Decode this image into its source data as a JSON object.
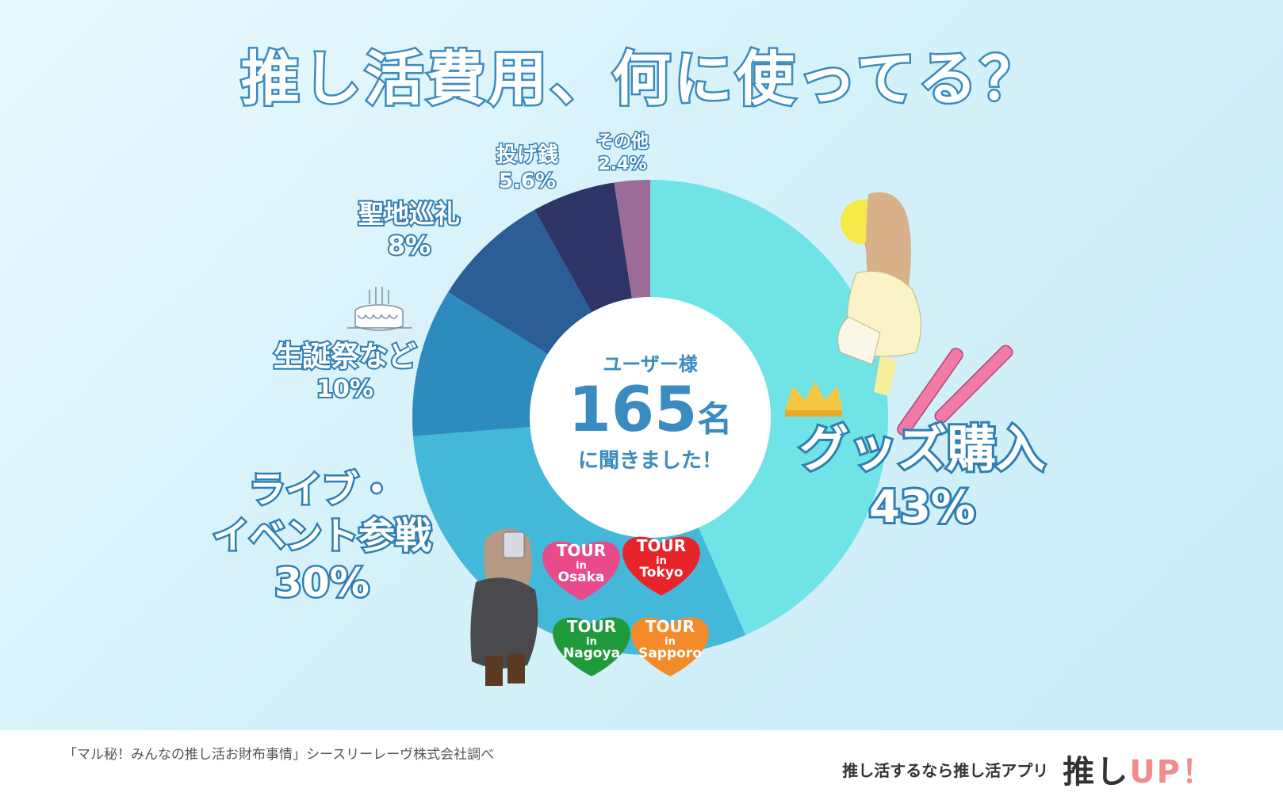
{
  "title": "推し活費用、何に使ってる？",
  "center": {
    "users_label": "ユーザー様",
    "count": "165",
    "count_unit": "名",
    "asked": "に聞きました！"
  },
  "chart_data": {
    "type": "pie",
    "donut": true,
    "title": "推し活費用、何に使ってる？",
    "categories": [
      "グッズ購入",
      "ライブ・イベント参戦",
      "生誕祭など",
      "聖地巡礼",
      "投げ銭",
      "その他"
    ],
    "values": [
      43,
      30,
      10,
      8,
      5.6,
      2.4
    ],
    "value_labels": [
      "43%",
      "30%",
      "10%",
      "8%",
      "5.6%",
      "2.4%"
    ],
    "colors": [
      "#6fe3e6",
      "#44b8d8",
      "#2e8bbd",
      "#2b5d97",
      "#2f3467",
      "#9b6d96"
    ],
    "legend": "none"
  },
  "labels": {
    "goods": {
      "line1": "グッズ購入",
      "pct": "43%"
    },
    "live": {
      "line1": "ライブ・",
      "line2": "イベント参戦",
      "pct": "30%"
    },
    "birthday": {
      "line1": "生誕祭など",
      "pct": "10%"
    },
    "pilgrimage": {
      "line1": "聖地巡礼",
      "pct": "8%"
    },
    "tipping": {
      "line1": "投げ銭",
      "pct": "5.6%"
    },
    "other": {
      "line1": "その他",
      "pct": "2.4%"
    }
  },
  "hearts": [
    {
      "line1": "TOUR",
      "line2": "in",
      "line3": "Osaka",
      "color": "#e84a8a"
    },
    {
      "line1": "TOUR",
      "line2": "in",
      "line3": "Tokyo",
      "color": "#e8232a"
    },
    {
      "line1": "TOUR",
      "line2": "in",
      "line3": "Nagoya",
      "color": "#1f9a3a"
    },
    {
      "line1": "TOUR",
      "line2": "in",
      "line3": "Sapporo",
      "color": "#f58a2a"
    }
  ],
  "footer": {
    "source": "「マル秘！みんなの推し活お財布事情」シースリーレーヴ株式会社調べ",
    "app_tagline": "推し活するなら推し活アプリ",
    "logo_prefix": "推し",
    "logo_up": "UP",
    "logo_bang": "！"
  }
}
